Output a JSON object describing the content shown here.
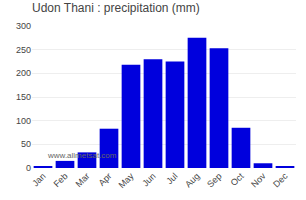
{
  "chart_data": {
    "type": "bar",
    "title": "Udon Thani : precipitation (mm)",
    "categories": [
      "Jan",
      "Feb",
      "Mar",
      "Apr",
      "May",
      "Jun",
      "Jul",
      "Aug",
      "Sep",
      "Oct",
      "Nov",
      "Dec"
    ],
    "values": [
      3,
      15,
      33,
      83,
      218,
      230,
      225,
      275,
      253,
      85,
      10,
      3
    ],
    "color": "#0000dd",
    "ylim": [
      0,
      300
    ],
    "yticks": [
      0,
      50,
      100,
      150,
      200,
      250,
      300
    ],
    "grid": true,
    "annotations": [
      "www.allmetsat.com"
    ]
  }
}
